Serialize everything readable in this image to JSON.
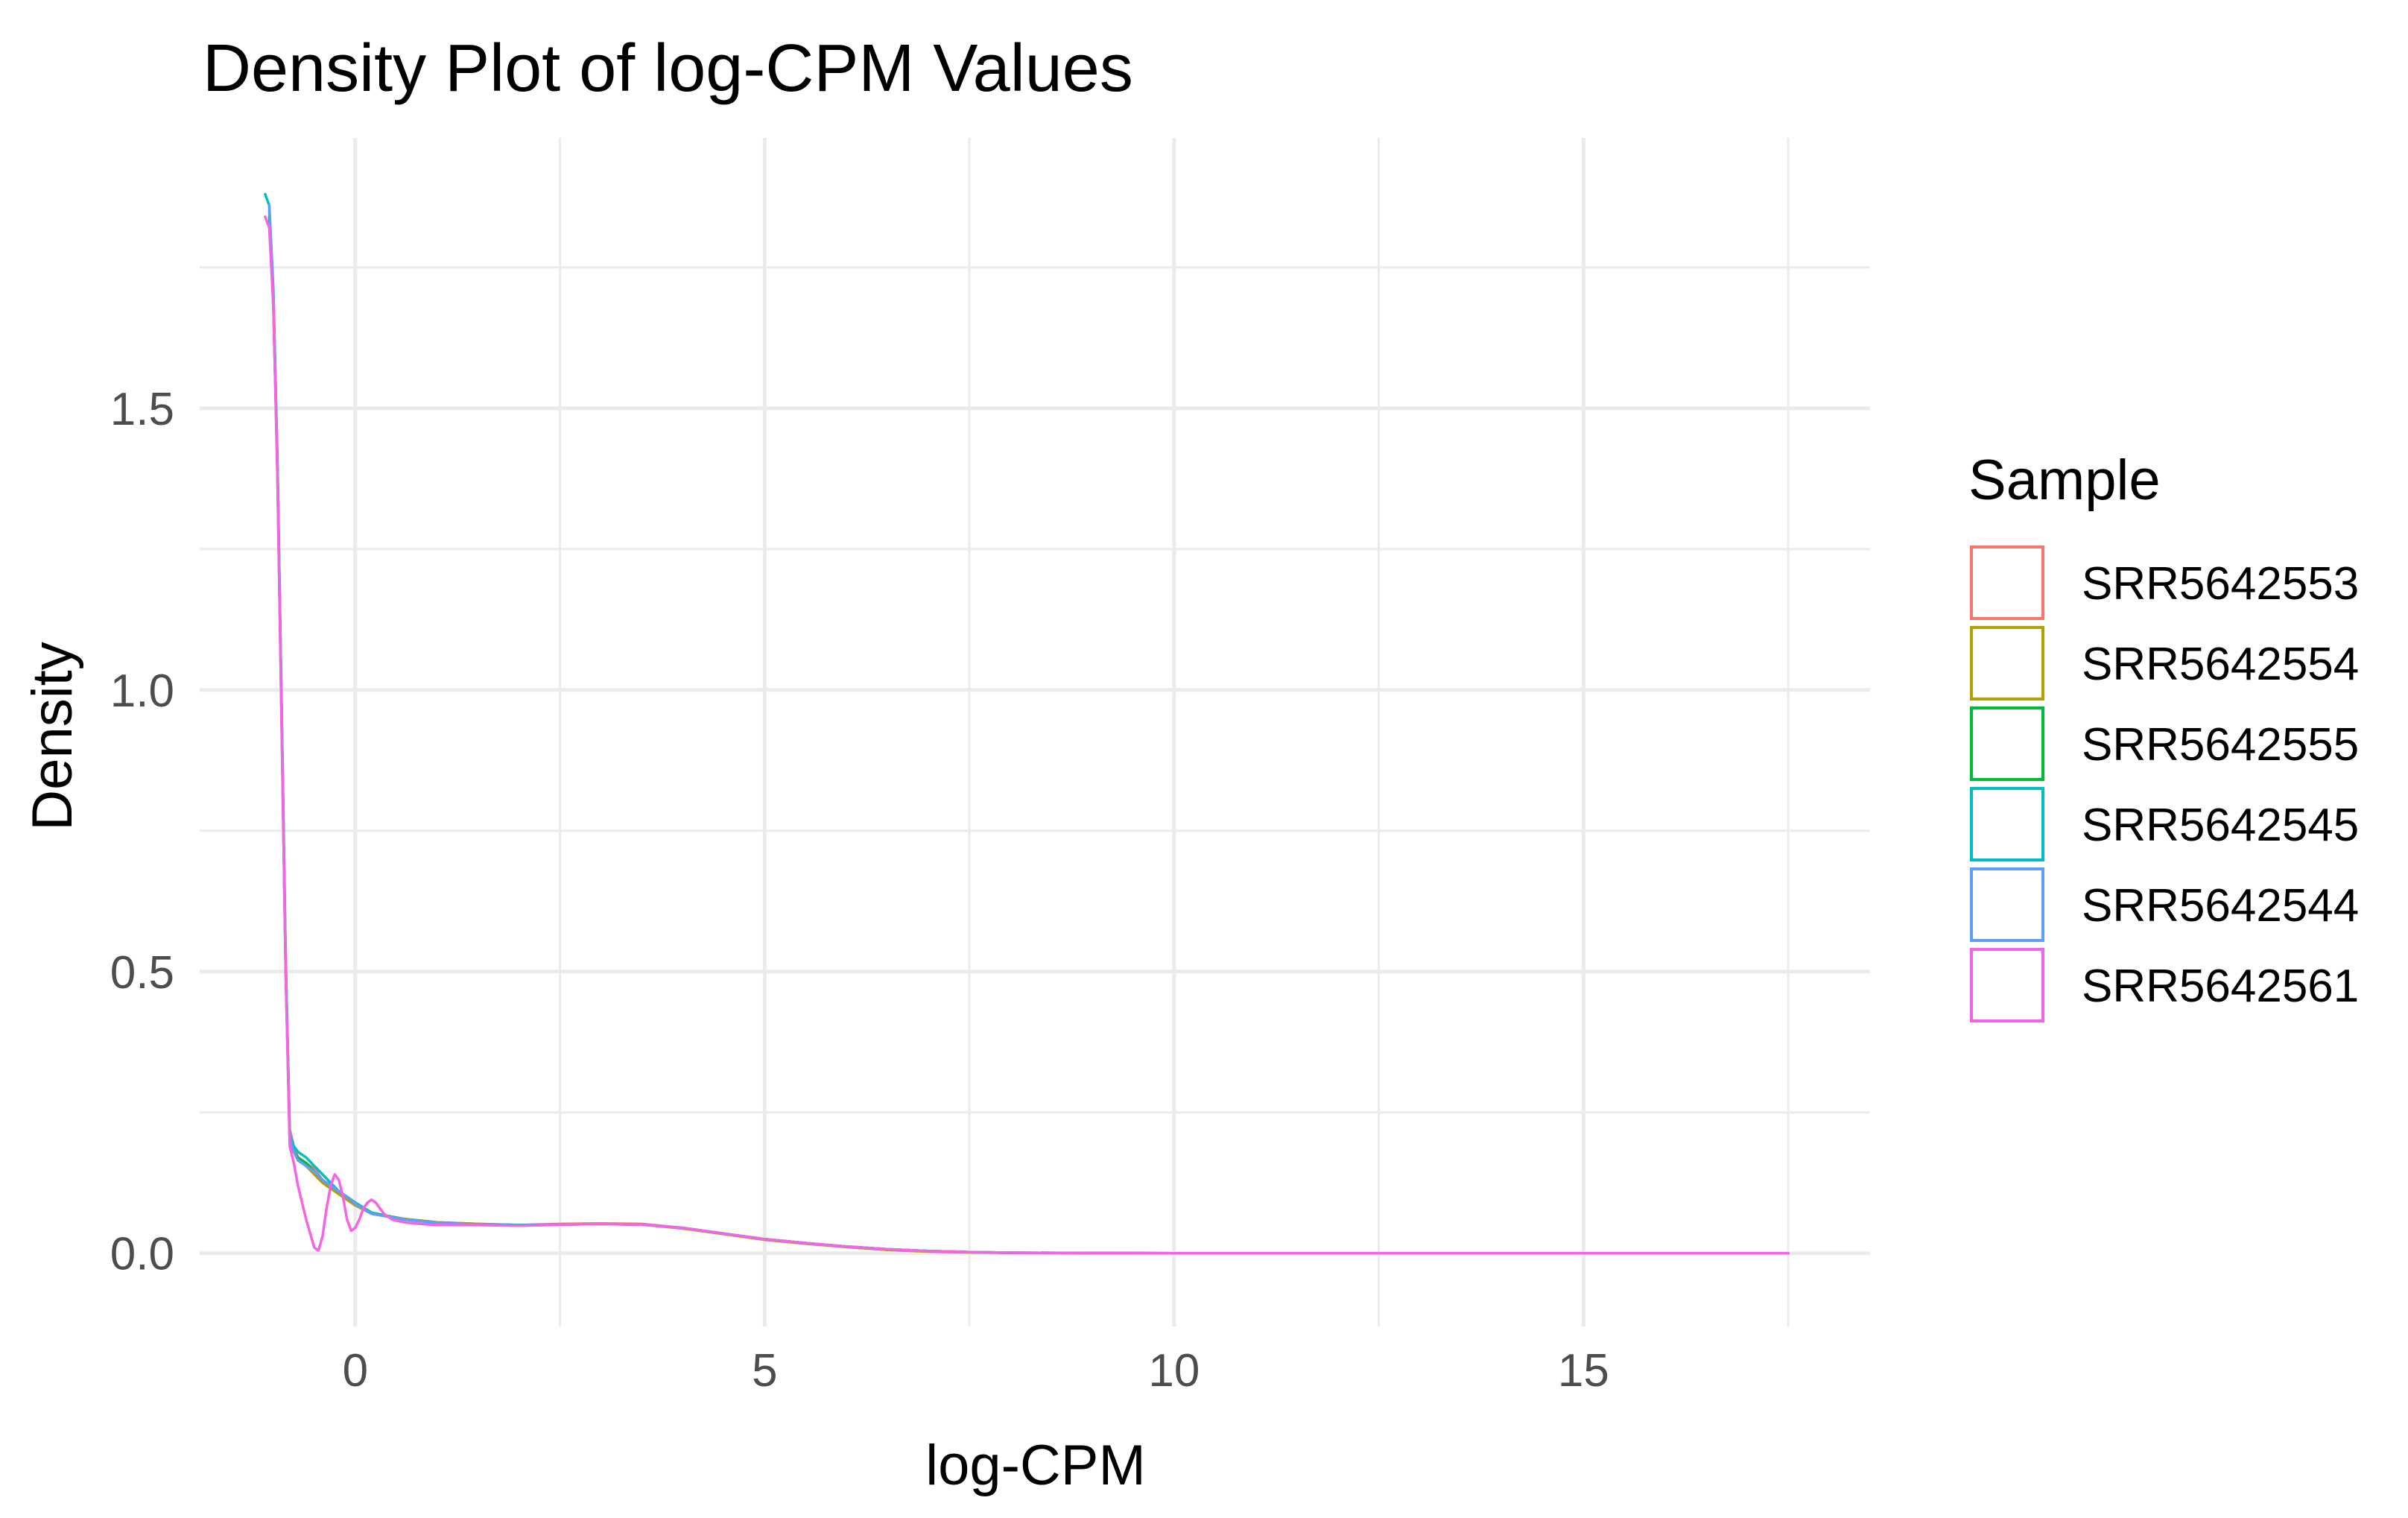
{
  "chart_data": {
    "type": "line",
    "title": "Density Plot of log-CPM Values",
    "xlabel": "log-CPM",
    "ylabel": "Density",
    "xlim": [
      -1.9,
      18.5
    ],
    "ylim": [
      -0.13,
      1.98
    ],
    "x_ticks": [
      0,
      5,
      10,
      15
    ],
    "x_tick_labels": [
      "0",
      "5",
      "10",
      "15"
    ],
    "y_ticks": [
      0.0,
      0.5,
      1.0,
      1.5
    ],
    "y_tick_labels": [
      "0.0",
      "0.5",
      "1.0",
      "1.5"
    ],
    "grid": true,
    "legend": {
      "title": "Sample",
      "placement": "right"
    },
    "series": [
      {
        "name": "SRR5642553",
        "color": "#F8766D",
        "x": [
          -1.05,
          -1.0,
          -0.95,
          -0.9,
          -0.85,
          -0.8,
          -0.75,
          -0.7,
          -0.6,
          -0.5,
          -0.4,
          -0.3,
          -0.2,
          -0.1,
          0.0,
          0.2,
          0.4,
          0.6,
          0.8,
          1.0,
          1.5,
          2.0,
          2.5,
          3.0,
          3.5,
          4.0,
          4.5,
          5.0,
          5.5,
          6.0,
          6.5,
          7.0,
          7.5,
          8.0,
          9.0,
          10.0,
          12.0,
          14.0,
          16.0,
          17.5
        ],
        "y": [
          1.83,
          1.7,
          1.38,
          0.95,
          0.52,
          0.22,
          0.19,
          0.17,
          0.16,
          0.15,
          0.13,
          0.12,
          0.11,
          0.1,
          0.09,
          0.07,
          0.065,
          0.06,
          0.058,
          0.055,
          0.052,
          0.05,
          0.052,
          0.053,
          0.052,
          0.045,
          0.035,
          0.025,
          0.018,
          0.012,
          0.007,
          0.004,
          0.002,
          0.001,
          0.0003,
          0.0001,
          0.0,
          0.0,
          0.0,
          0.0
        ]
      },
      {
        "name": "SRR5642554",
        "color": "#B79F00",
        "x": [
          -1.05,
          -1.0,
          -0.95,
          -0.9,
          -0.85,
          -0.8,
          -0.75,
          -0.7,
          -0.6,
          -0.5,
          -0.4,
          -0.3,
          -0.2,
          -0.1,
          0.0,
          0.2,
          0.4,
          0.6,
          0.8,
          1.0,
          1.5,
          2.0,
          2.5,
          3.0,
          3.5,
          4.0,
          4.5,
          5.0,
          5.5,
          6.0,
          6.5,
          7.0,
          7.5,
          8.0,
          9.0,
          10.0,
          12.0,
          14.0,
          16.0,
          17.5
        ],
        "y": [
          1.85,
          1.68,
          1.4,
          0.97,
          0.5,
          0.21,
          0.185,
          0.165,
          0.155,
          0.14,
          0.125,
          0.115,
          0.105,
          0.095,
          0.085,
          0.07,
          0.066,
          0.061,
          0.058,
          0.055,
          0.052,
          0.05,
          0.051,
          0.052,
          0.051,
          0.044,
          0.034,
          0.024,
          0.017,
          0.011,
          0.006,
          0.003,
          0.0015,
          0.0008,
          0.0002,
          0.0001,
          0.0,
          0.0,
          0.0,
          0.0
        ]
      },
      {
        "name": "SRR5642555",
        "color": "#00BA38",
        "x": [
          -1.05,
          -1.0,
          -0.95,
          -0.9,
          -0.85,
          -0.8,
          -0.75,
          -0.7,
          -0.6,
          -0.5,
          -0.4,
          -0.3,
          -0.2,
          -0.1,
          0.0,
          0.2,
          0.4,
          0.6,
          0.8,
          1.0,
          1.5,
          2.0,
          2.5,
          3.0,
          3.5,
          4.0,
          4.5,
          5.0,
          5.5,
          6.0,
          6.5,
          7.0,
          7.5,
          8.0,
          9.0,
          10.0,
          12.0,
          14.0,
          16.0,
          17.5
        ],
        "y": [
          1.84,
          1.69,
          1.39,
          0.96,
          0.51,
          0.2,
          0.18,
          0.17,
          0.16,
          0.145,
          0.13,
          0.12,
          0.11,
          0.1,
          0.09,
          0.072,
          0.066,
          0.06,
          0.057,
          0.054,
          0.051,
          0.049,
          0.051,
          0.052,
          0.051,
          0.045,
          0.035,
          0.025,
          0.018,
          0.012,
          0.007,
          0.004,
          0.002,
          0.001,
          0.0003,
          0.0001,
          0.0,
          0.0,
          0.0,
          0.0
        ]
      },
      {
        "name": "SRR5642545",
        "color": "#00BFC4",
        "x": [
          -1.1,
          -1.05,
          -1.0,
          -0.95,
          -0.9,
          -0.85,
          -0.8,
          -0.75,
          -0.7,
          -0.6,
          -0.5,
          -0.4,
          -0.3,
          -0.2,
          -0.1,
          0.0,
          0.2,
          0.4,
          0.6,
          0.8,
          1.0,
          1.5,
          2.0,
          2.5,
          3.0,
          3.5,
          4.0,
          4.5,
          5.0,
          5.5,
          6.0,
          6.5,
          7.0,
          7.5,
          8.0,
          9.0,
          10.0,
          12.0,
          14.0,
          16.0,
          17.5
        ],
        "y": [
          1.88,
          1.86,
          1.71,
          1.41,
          0.98,
          0.53,
          0.21,
          0.19,
          0.18,
          0.17,
          0.155,
          0.14,
          0.125,
          0.11,
          0.1,
          0.09,
          0.071,
          0.065,
          0.06,
          0.057,
          0.054,
          0.051,
          0.05,
          0.051,
          0.052,
          0.051,
          0.045,
          0.035,
          0.025,
          0.018,
          0.012,
          0.007,
          0.004,
          0.002,
          0.001,
          0.0003,
          0.0001,
          0.0,
          0.0,
          0.0,
          0.0
        ]
      },
      {
        "name": "SRR5642544",
        "color": "#619CFF",
        "x": [
          -1.05,
          -1.0,
          -0.95,
          -0.9,
          -0.85,
          -0.8,
          -0.75,
          -0.7,
          -0.6,
          -0.5,
          -0.4,
          -0.3,
          -0.2,
          -0.1,
          0.0,
          0.2,
          0.4,
          0.6,
          0.8,
          1.0,
          1.5,
          2.0,
          2.5,
          3.0,
          3.5,
          4.0,
          4.5,
          5.0,
          5.5,
          6.0,
          6.5,
          7.0,
          7.5,
          8.0,
          9.0,
          10.0,
          12.0,
          14.0,
          16.0,
          17.5
        ],
        "y": [
          1.86,
          1.7,
          1.4,
          0.97,
          0.52,
          0.205,
          0.18,
          0.165,
          0.155,
          0.145,
          0.13,
          0.12,
          0.11,
          0.1,
          0.088,
          0.07,
          0.065,
          0.06,
          0.057,
          0.054,
          0.051,
          0.049,
          0.051,
          0.052,
          0.051,
          0.045,
          0.035,
          0.025,
          0.018,
          0.012,
          0.007,
          0.004,
          0.002,
          0.001,
          0.0003,
          0.0001,
          0.0,
          0.0,
          0.0,
          0.0
        ]
      },
      {
        "name": "SRR5642561",
        "color": "#F564E3",
        "x": [
          -1.1,
          -1.05,
          -1.0,
          -0.95,
          -0.9,
          -0.85,
          -0.8,
          -0.75,
          -0.7,
          -0.6,
          -0.5,
          -0.45,
          -0.4,
          -0.35,
          -0.3,
          -0.25,
          -0.2,
          -0.15,
          -0.1,
          -0.05,
          0.0,
          0.05,
          0.1,
          0.15,
          0.2,
          0.25,
          0.3,
          0.35,
          0.4,
          0.45,
          0.5,
          0.6,
          0.8,
          1.0,
          1.5,
          2.0,
          2.5,
          3.0,
          3.5,
          4.0,
          4.5,
          5.0,
          5.5,
          6.0,
          6.5,
          7.0,
          7.5,
          8.0,
          9.0,
          10.0,
          12.0,
          14.0,
          16.0,
          17.5
        ],
        "y": [
          1.84,
          1.82,
          1.68,
          1.38,
          0.94,
          0.5,
          0.19,
          0.16,
          0.12,
          0.06,
          0.01,
          0.005,
          0.03,
          0.08,
          0.12,
          0.14,
          0.13,
          0.1,
          0.06,
          0.04,
          0.045,
          0.06,
          0.08,
          0.09,
          0.095,
          0.09,
          0.08,
          0.07,
          0.065,
          0.06,
          0.058,
          0.055,
          0.052,
          0.05,
          0.05,
          0.049,
          0.051,
          0.052,
          0.051,
          0.045,
          0.035,
          0.025,
          0.018,
          0.012,
          0.007,
          0.004,
          0.002,
          0.001,
          0.0003,
          0.0001,
          0.0,
          0.0,
          0.0,
          0.0
        ]
      }
    ]
  }
}
